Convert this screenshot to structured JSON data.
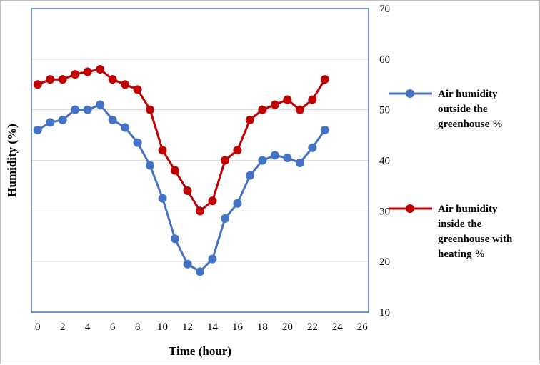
{
  "chart_data": {
    "type": "line",
    "xlabel": "Time (hour)",
    "ylabel": "Humidity (%)",
    "x_ticks": [
      0,
      2,
      4,
      6,
      8,
      10,
      12,
      14,
      16,
      18,
      20,
      22,
      24,
      26
    ],
    "y_ticks": [
      10,
      20,
      30,
      40,
      50,
      60,
      70
    ],
    "xlim": [
      -0.5,
      26.5
    ],
    "ylim": [
      10,
      70
    ],
    "y_axis_side": "right",
    "grid": "horizontal",
    "legend_position": "right",
    "x": [
      0,
      1,
      2,
      3,
      4,
      5,
      6,
      7,
      8,
      9,
      10,
      11,
      12,
      13,
      14,
      15,
      16,
      17,
      18,
      19,
      20,
      21,
      22,
      23
    ],
    "series": [
      {
        "name": "Air humidity outside the greenhouse %",
        "legend_lines": [
          "Air humidity",
          "outside the",
          "greenhouse %"
        ],
        "color": "#4472c4",
        "values": [
          46,
          47.5,
          48,
          50,
          50,
          51,
          48,
          46.5,
          43.5,
          39,
          32.5,
          24.5,
          19.5,
          18,
          20.5,
          28.5,
          31.5,
          37,
          40,
          41,
          40.5,
          39.5,
          42.5,
          46
        ]
      },
      {
        "name": "Air humidity inside the greenhouse with heating %",
        "legend_lines": [
          "Air humidity",
          "inside the",
          "greenhouse with",
          "heating %"
        ],
        "color": "#c00000",
        "values": [
          55,
          56,
          56,
          57,
          57.5,
          58,
          56,
          55,
          54,
          50,
          42,
          38,
          34,
          30,
          32,
          40,
          42,
          48,
          50,
          51,
          52,
          50,
          52,
          56
        ]
      }
    ]
  }
}
